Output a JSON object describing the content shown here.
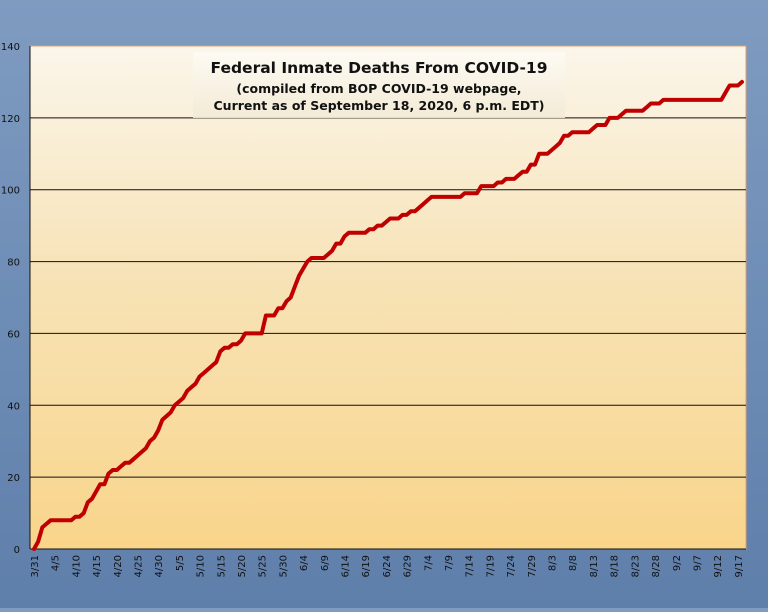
{
  "chart_data": {
    "type": "line",
    "title": "Federal Inmate Deaths From COVID-19",
    "subtitle_lines": [
      "(compiled from BOP COVID-19 webpage,",
      "Current as of September 18, 2020, 6 p.m. EDT)"
    ],
    "xlabel": "",
    "ylabel": "",
    "ylim": [
      0,
      140
    ],
    "yticks": [
      0,
      20,
      40,
      60,
      80,
      100,
      120,
      140
    ],
    "xticks": [
      "3/31",
      "4/5",
      "4/10",
      "4/15",
      "4/20",
      "4/25",
      "4/30",
      "5/5",
      "5/10",
      "5/15",
      "5/20",
      "5/25",
      "5/30",
      "6/4",
      "6/9",
      "6/14",
      "6/19",
      "6/24",
      "6/29",
      "7/4",
      "7/9",
      "7/14",
      "7/19",
      "7/24",
      "7/29",
      "8/3",
      "8/8",
      "8/13",
      "8/18",
      "8/23",
      "8/28",
      "9/2",
      "9/7",
      "9/12",
      "9/17"
    ],
    "grid": true,
    "legend": "none",
    "series": [
      {
        "color": "#c00000",
        "points": [
          [
            "3/31",
            0
          ],
          [
            "4/1",
            2
          ],
          [
            "4/2",
            6
          ],
          [
            "4/3",
            7
          ],
          [
            "4/4",
            8
          ],
          [
            "4/5",
            8
          ],
          [
            "4/6",
            8
          ],
          [
            "4/7",
            8
          ],
          [
            "4/8",
            8
          ],
          [
            "4/9",
            8
          ],
          [
            "4/10",
            9
          ],
          [
            "4/11",
            9
          ],
          [
            "4/12",
            10
          ],
          [
            "4/13",
            13
          ],
          [
            "4/14",
            14
          ],
          [
            "4/15",
            16
          ],
          [
            "4/16",
            18
          ],
          [
            "4/17",
            18
          ],
          [
            "4/18",
            21
          ],
          [
            "4/19",
            22
          ],
          [
            "4/20",
            22
          ],
          [
            "4/21",
            23
          ],
          [
            "4/22",
            24
          ],
          [
            "4/23",
            24
          ],
          [
            "4/24",
            25
          ],
          [
            "4/25",
            26
          ],
          [
            "4/26",
            27
          ],
          [
            "4/27",
            28
          ],
          [
            "4/28",
            30
          ],
          [
            "4/29",
            31
          ],
          [
            "4/30",
            33
          ],
          [
            "5/1",
            36
          ],
          [
            "5/2",
            37
          ],
          [
            "5/3",
            38
          ],
          [
            "5/4",
            40
          ],
          [
            "5/5",
            41
          ],
          [
            "5/6",
            42
          ],
          [
            "5/7",
            44
          ],
          [
            "5/8",
            45
          ],
          [
            "5/9",
            46
          ],
          [
            "5/10",
            48
          ],
          [
            "5/11",
            49
          ],
          [
            "5/12",
            50
          ],
          [
            "5/13",
            51
          ],
          [
            "5/14",
            52
          ],
          [
            "5/15",
            55
          ],
          [
            "5/16",
            56
          ],
          [
            "5/17",
            56
          ],
          [
            "5/18",
            57
          ],
          [
            "5/19",
            57
          ],
          [
            "5/20",
            58
          ],
          [
            "5/21",
            60
          ],
          [
            "5/22",
            60
          ],
          [
            "5/23",
            60
          ],
          [
            "5/24",
            60
          ],
          [
            "5/25",
            60
          ],
          [
            "5/26",
            65
          ],
          [
            "5/27",
            65
          ],
          [
            "5/28",
            65
          ],
          [
            "5/29",
            67
          ],
          [
            "5/30",
            67
          ],
          [
            "5/31",
            69
          ],
          [
            "6/1",
            70
          ],
          [
            "6/2",
            73
          ],
          [
            "6/3",
            76
          ],
          [
            "6/4",
            78
          ],
          [
            "6/5",
            80
          ],
          [
            "6/6",
            81
          ],
          [
            "6/7",
            81
          ],
          [
            "6/8",
            81
          ],
          [
            "6/9",
            81
          ],
          [
            "6/10",
            82
          ],
          [
            "6/11",
            83
          ],
          [
            "6/12",
            85
          ],
          [
            "6/13",
            85
          ],
          [
            "6/14",
            87
          ],
          [
            "6/15",
            88
          ],
          [
            "6/16",
            88
          ],
          [
            "6/17",
            88
          ],
          [
            "6/18",
            88
          ],
          [
            "6/19",
            88
          ],
          [
            "6/20",
            89
          ],
          [
            "6/21",
            89
          ],
          [
            "6/22",
            90
          ],
          [
            "6/23",
            90
          ],
          [
            "6/24",
            91
          ],
          [
            "6/25",
            92
          ],
          [
            "6/26",
            92
          ],
          [
            "6/27",
            92
          ],
          [
            "6/28",
            93
          ],
          [
            "6/29",
            93
          ],
          [
            "6/30",
            94
          ],
          [
            "7/1",
            94
          ],
          [
            "7/2",
            95
          ],
          [
            "7/3",
            96
          ],
          [
            "7/4",
            97
          ],
          [
            "7/5",
            98
          ],
          [
            "7/6",
            98
          ],
          [
            "7/7",
            98
          ],
          [
            "7/8",
            98
          ],
          [
            "7/9",
            98
          ],
          [
            "7/10",
            98
          ],
          [
            "7/11",
            98
          ],
          [
            "7/12",
            98
          ],
          [
            "7/13",
            99
          ],
          [
            "7/14",
            99
          ],
          [
            "7/15",
            99
          ],
          [
            "7/16",
            99
          ],
          [
            "7/17",
            101
          ],
          [
            "7/18",
            101
          ],
          [
            "7/19",
            101
          ],
          [
            "7/20",
            101
          ],
          [
            "7/21",
            102
          ],
          [
            "7/22",
            102
          ],
          [
            "7/23",
            103
          ],
          [
            "7/24",
            103
          ],
          [
            "7/25",
            103
          ],
          [
            "7/26",
            104
          ],
          [
            "7/27",
            105
          ],
          [
            "7/28",
            105
          ],
          [
            "7/29",
            107
          ],
          [
            "7/30",
            107
          ],
          [
            "7/31",
            110
          ],
          [
            "8/1",
            110
          ],
          [
            "8/2",
            110
          ],
          [
            "8/3",
            111
          ],
          [
            "8/4",
            112
          ],
          [
            "8/5",
            113
          ],
          [
            "8/6",
            115
          ],
          [
            "8/7",
            115
          ],
          [
            "8/8",
            116
          ],
          [
            "8/9",
            116
          ],
          [
            "8/10",
            116
          ],
          [
            "8/11",
            116
          ],
          [
            "8/12",
            116
          ],
          [
            "8/13",
            117
          ],
          [
            "8/14",
            118
          ],
          [
            "8/15",
            118
          ],
          [
            "8/16",
            118
          ],
          [
            "8/17",
            120
          ],
          [
            "8/18",
            120
          ],
          [
            "8/19",
            120
          ],
          [
            "8/20",
            121
          ],
          [
            "8/21",
            122
          ],
          [
            "8/22",
            122
          ],
          [
            "8/23",
            122
          ],
          [
            "8/24",
            122
          ],
          [
            "8/25",
            122
          ],
          [
            "8/26",
            123
          ],
          [
            "8/27",
            124
          ],
          [
            "8/28",
            124
          ],
          [
            "8/29",
            124
          ],
          [
            "8/30",
            125
          ],
          [
            "8/31",
            125
          ],
          [
            "9/1",
            125
          ],
          [
            "9/2",
            125
          ],
          [
            "9/3",
            125
          ],
          [
            "9/4",
            125
          ],
          [
            "9/5",
            125
          ],
          [
            "9/6",
            125
          ],
          [
            "9/7",
            125
          ],
          [
            "9/8",
            125
          ],
          [
            "9/9",
            125
          ],
          [
            "9/10",
            125
          ],
          [
            "9/11",
            125
          ],
          [
            "9/12",
            125
          ],
          [
            "9/13",
            125
          ],
          [
            "9/14",
            127
          ],
          [
            "9/15",
            129
          ],
          [
            "9/16",
            129
          ],
          [
            "9/17",
            129
          ],
          [
            "9/18",
            130
          ]
        ]
      }
    ]
  }
}
